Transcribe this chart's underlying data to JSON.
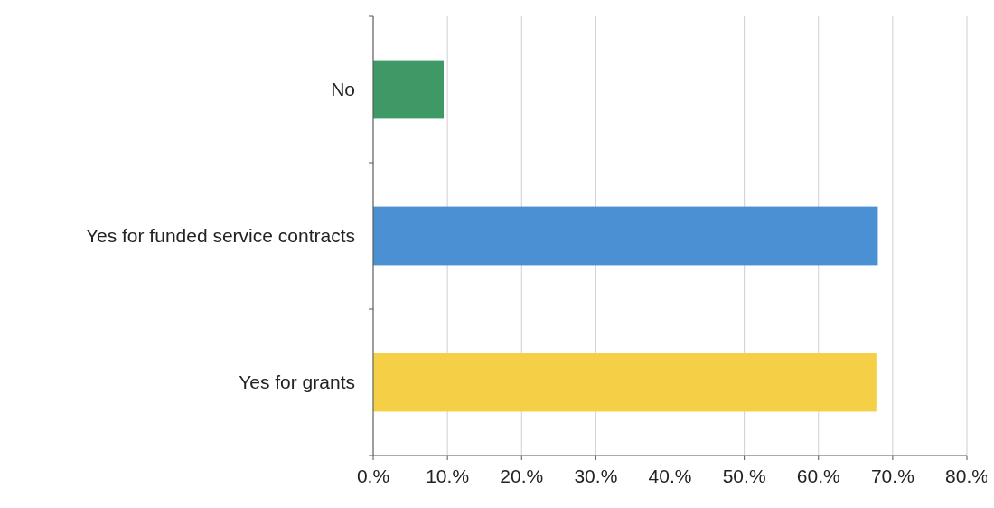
{
  "chart_data": {
    "type": "bar",
    "orientation": "horizontal",
    "categories": [
      "No",
      "Yes for funded service contracts",
      "Yes for grants"
    ],
    "values": [
      9.5,
      68,
      67.8
    ],
    "colors": [
      "#3f9966",
      "#4a90d2",
      "#f5cf45"
    ],
    "xlim": [
      0,
      80
    ],
    "xticks": [
      {
        "value": 0,
        "label": "0.%"
      },
      {
        "value": 10,
        "label": "10.%"
      },
      {
        "value": 20,
        "label": "20.%"
      },
      {
        "value": 30,
        "label": "30.%"
      },
      {
        "value": 40,
        "label": "40.%"
      },
      {
        "value": 50,
        "label": "50.%"
      },
      {
        "value": 60,
        "label": "60.%"
      },
      {
        "value": 70,
        "label": "70.%"
      },
      {
        "value": 80,
        "label": "80.%"
      }
    ],
    "grid": "x"
  }
}
